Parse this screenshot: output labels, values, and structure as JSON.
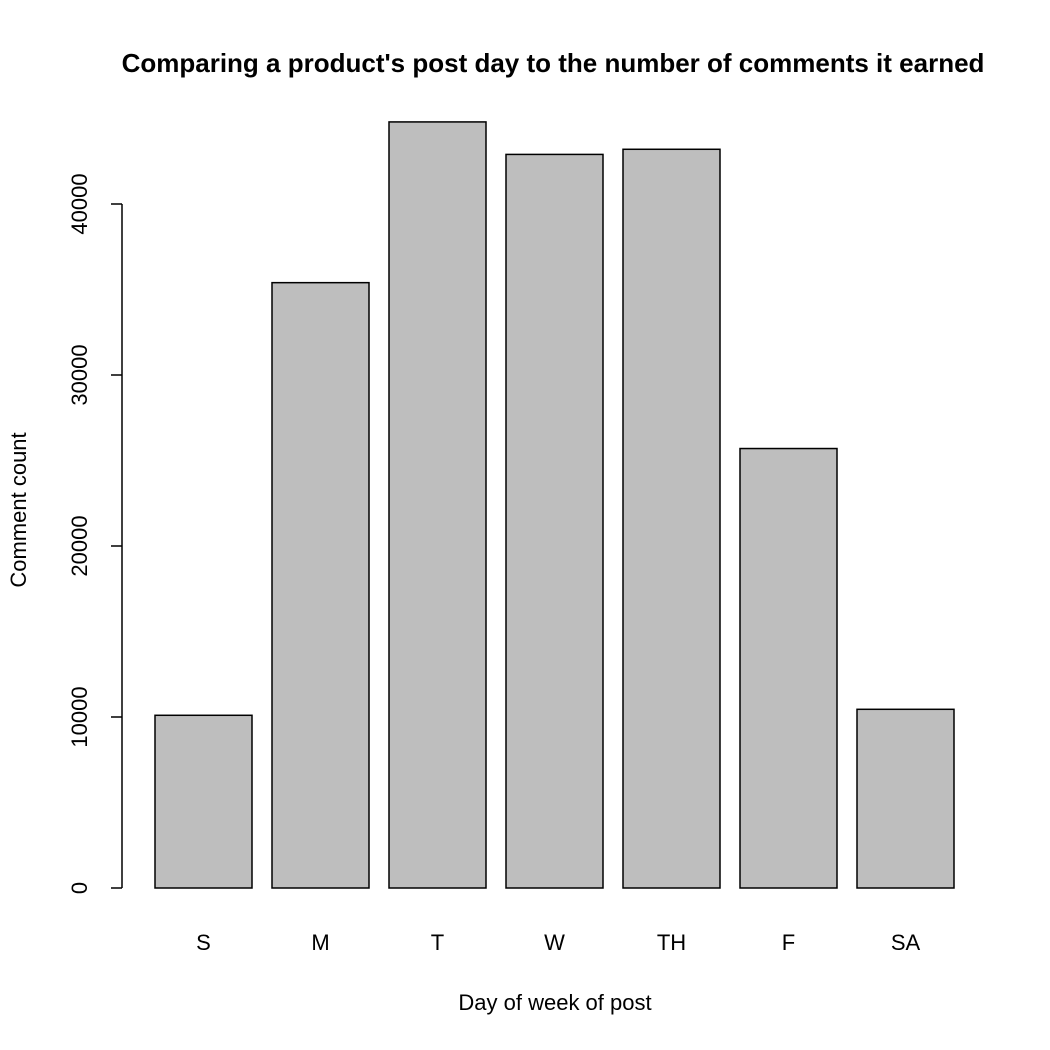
{
  "chart_data": {
    "type": "bar",
    "title": "Comparing a product's post day to the number of comments it earned",
    "xlabel": "Day of week of post",
    "ylabel": "Comment count",
    "categories": [
      "S",
      "M",
      "T",
      "W",
      "TH",
      "F",
      "SA"
    ],
    "values": [
      10100,
      35400,
      44800,
      42900,
      43200,
      25700,
      10450
    ],
    "ylim": [
      0,
      46000
    ],
    "yticks": [
      0,
      10000,
      20000,
      30000,
      40000
    ],
    "bar_color": "#bebebe",
    "grid": false,
    "legend": "none"
  }
}
